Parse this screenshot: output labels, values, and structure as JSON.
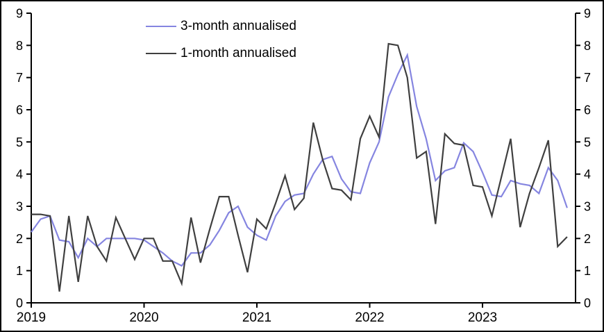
{
  "figure": {
    "background": "#ffffff",
    "border_color": "#000000",
    "text_color": "#000000"
  },
  "legend": {
    "items": [
      {
        "label": "3-month annualised",
        "color": "#8585e0"
      },
      {
        "label": "1-month annualised",
        "color": "#3f3f3f"
      }
    ]
  },
  "chart_data": {
    "type": "line",
    "title": "",
    "frequency": "monthly",
    "x_start": "2019-01",
    "x_end": "2023-10",
    "x_tick_labels": [
      "2019",
      "2020",
      "2021",
      "2022",
      "2023"
    ],
    "y_ticks": [
      0,
      1,
      2,
      3,
      4,
      5,
      6,
      7,
      8,
      9
    ],
    "ylim": [
      0,
      9
    ],
    "dual_y_axis": true,
    "grid": false,
    "legend_position": "top-inside",
    "series": [
      {
        "name": "3-month annualised",
        "color": "#8585e0",
        "values": [
          2.2,
          2.6,
          2.7,
          1.95,
          1.9,
          1.4,
          2.0,
          1.75,
          2.0,
          2.0,
          2.0,
          2.0,
          1.95,
          1.75,
          1.55,
          1.3,
          1.15,
          1.55,
          1.55,
          1.8,
          2.25,
          2.8,
          3.0,
          2.35,
          2.1,
          1.95,
          2.7,
          3.15,
          3.35,
          3.4,
          4.0,
          4.45,
          4.55,
          3.85,
          3.45,
          3.4,
          4.35,
          5.0,
          6.4,
          7.1,
          7.7,
          6.1,
          5.1,
          3.8,
          4.1,
          4.2,
          4.97,
          4.7,
          4.05,
          3.35,
          3.3,
          3.8,
          3.7,
          3.65,
          3.4,
          4.2,
          3.8,
          2.95
        ]
      },
      {
        "name": "1-month annualised",
        "color": "#3f3f3f",
        "values": [
          2.75,
          2.75,
          2.7,
          0.35,
          2.7,
          0.65,
          2.7,
          1.75,
          1.3,
          2.65,
          2.0,
          1.35,
          2.0,
          2.0,
          1.3,
          1.3,
          0.6,
          2.65,
          1.25,
          2.3,
          3.3,
          3.3,
          2.1,
          0.95,
          2.6,
          2.3,
          3.1,
          3.95,
          2.9,
          3.25,
          5.6,
          4.45,
          3.55,
          3.5,
          3.2,
          5.1,
          5.8,
          5.15,
          8.05,
          8.0,
          7.0,
          4.5,
          4.7,
          2.45,
          5.25,
          4.95,
          4.9,
          3.65,
          3.6,
          2.7,
          3.9,
          5.1,
          2.35,
          3.4,
          4.2,
          5.05,
          1.75,
          2.05
        ]
      }
    ]
  }
}
